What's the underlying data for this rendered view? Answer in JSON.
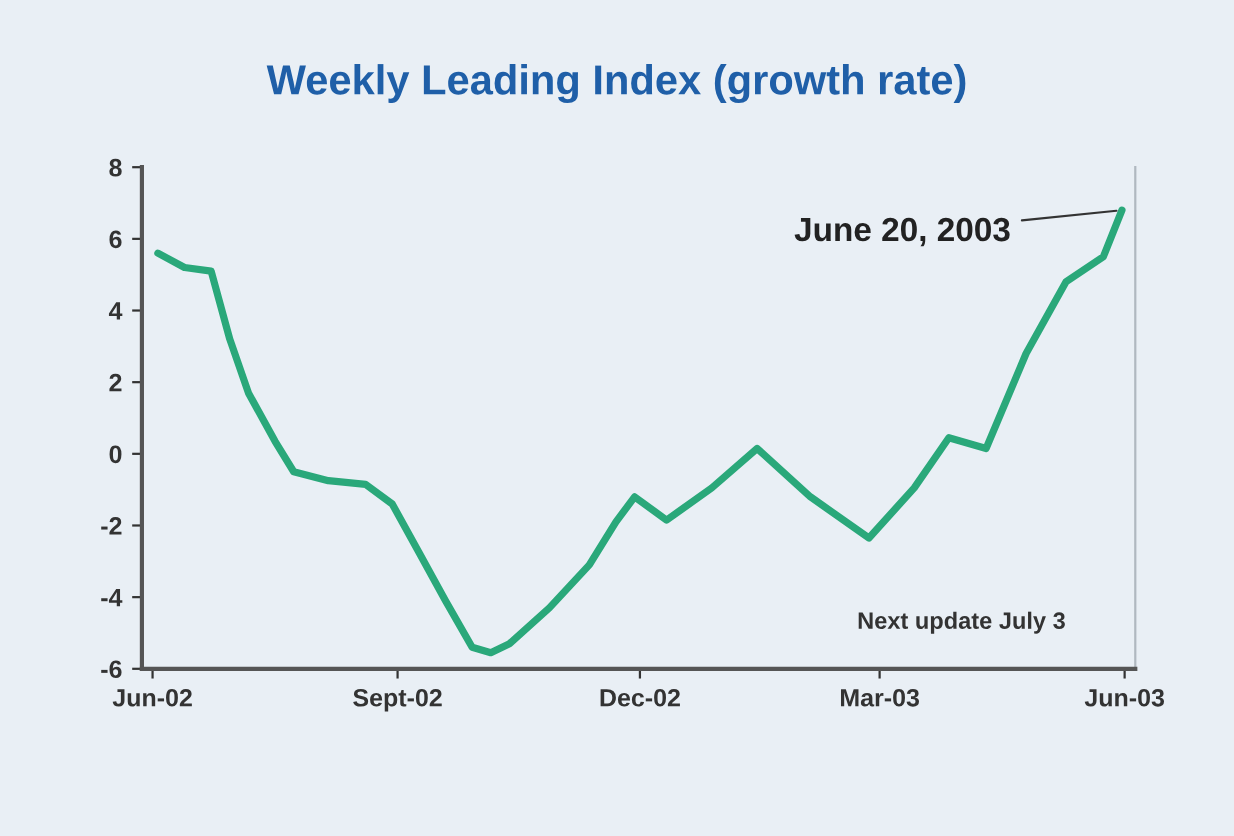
{
  "chart_data": {
    "type": "line",
    "title": "Weekly Leading Index (growth rate)",
    "x": [
      "2002-06-03",
      "2002-06-13",
      "2002-06-23",
      "2002-06-30",
      "2002-07-07",
      "2002-07-17",
      "2002-07-24",
      "2002-08-06",
      "2002-08-20",
      "2002-08-30",
      "2002-09-09",
      "2002-09-19",
      "2002-09-29",
      "2002-10-06",
      "2002-10-13",
      "2002-10-28",
      "2002-11-12",
      "2002-11-22",
      "2002-11-29",
      "2002-12-11",
      "2002-12-28",
      "2003-01-14",
      "2003-02-03",
      "2003-02-25",
      "2003-03-14",
      "2003-03-27",
      "2003-04-10",
      "2003-04-25",
      "2003-05-10",
      "2003-05-24",
      "2003-05-31"
    ],
    "series": [
      {
        "color": "#2aa87a",
        "values": [
          5.6,
          5.2,
          5.1,
          3.2,
          1.7,
          0.35,
          -0.5,
          -0.75,
          -0.85,
          -1.4,
          -2.75,
          -4.1,
          -5.4,
          -5.55,
          -5.3,
          -4.3,
          -3.1,
          -1.9,
          -1.2,
          -1.85,
          -0.95,
          0.15,
          -1.2,
          -2.35,
          -0.95,
          0.45,
          0.15,
          2.8,
          4.8,
          5.5,
          6.8
        ]
      }
    ],
    "xlim": [
      "2002-05-28",
      "2003-06-05"
    ],
    "xticks": [
      {
        "value": "2002-06-01",
        "label": "Jun-02"
      },
      {
        "value": "2002-09-01",
        "label": "Sept-02"
      },
      {
        "value": "2002-12-01",
        "label": "Dec-02"
      },
      {
        "value": "2003-03-01",
        "label": "Mar-03"
      },
      {
        "value": "2003-06-01",
        "label": "Jun-03"
      }
    ],
    "ylim": [
      -6,
      8
    ],
    "yticks": [
      -6,
      -4,
      -2,
      0,
      2,
      4,
      6,
      8
    ],
    "grid": false,
    "legend": false,
    "marker": "none",
    "line_style": "solid",
    "annotations": [
      {
        "text": "June 20, 2003",
        "x": "2003-05-31",
        "y": 6.8
      },
      "Next update July 3"
    ]
  }
}
